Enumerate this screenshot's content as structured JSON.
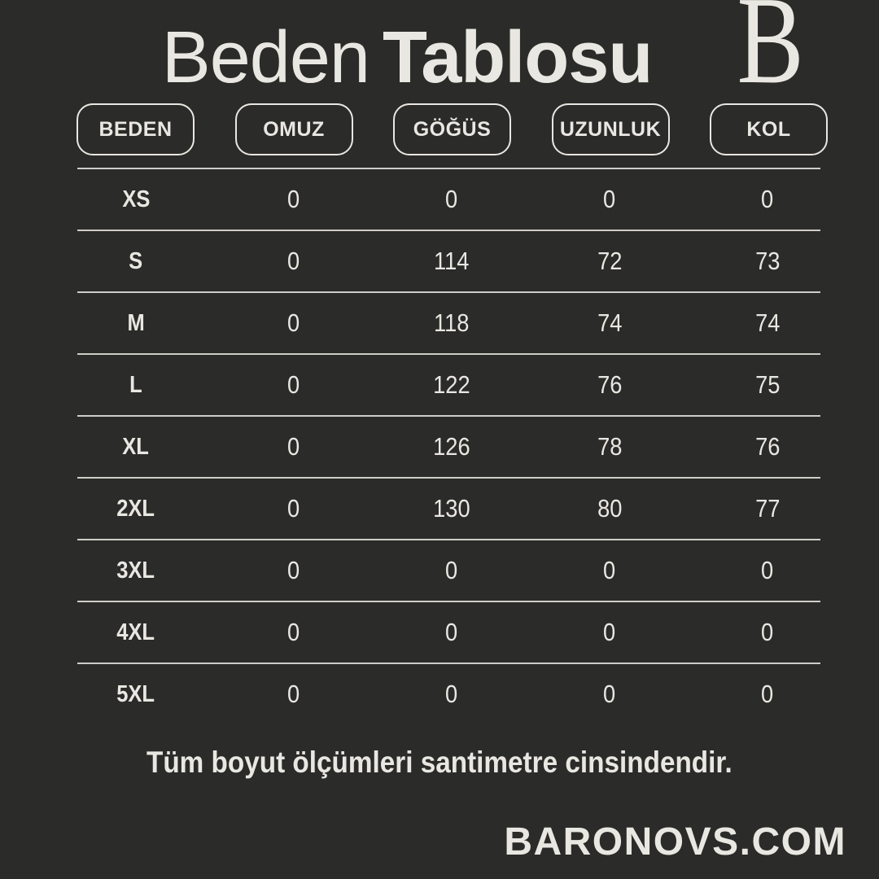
{
  "page": {
    "bg_color": "#2b2b29",
    "text_color": "#e9e7e1",
    "line_color": "#cfcdc7"
  },
  "header": {
    "title_regular": "Beden",
    "title_bold": "Tablosu",
    "logo_letter": "B"
  },
  "chart_data": {
    "type": "table",
    "title": "Beden Tablosu",
    "columns": [
      "BEDEN",
      "OMUZ",
      "GÖĞÜS",
      "UZUNLUK",
      "KOL"
    ],
    "rows": [
      {
        "size": "XS",
        "values": [
          "0",
          "0",
          "0",
          "0"
        ]
      },
      {
        "size": "S",
        "values": [
          "0",
          "114",
          "72",
          "73"
        ]
      },
      {
        "size": "M",
        "values": [
          "0",
          "118",
          "74",
          "74"
        ]
      },
      {
        "size": "L",
        "values": [
          "0",
          "122",
          "76",
          "75"
        ]
      },
      {
        "size": "XL",
        "values": [
          "0",
          "126",
          "78",
          "76"
        ]
      },
      {
        "size": "2XL",
        "values": [
          "0",
          "130",
          "80",
          "77"
        ]
      },
      {
        "size": "3XL",
        "values": [
          "0",
          "0",
          "0",
          "0"
        ]
      },
      {
        "size": "4XL",
        "values": [
          "0",
          "0",
          "0",
          "0"
        ]
      },
      {
        "size": "5XL",
        "values": [
          "0",
          "0",
          "0",
          "0"
        ]
      }
    ],
    "units_note": "Tüm boyut ölçümleri santimetre cinsindendir."
  },
  "footer": {
    "note": "Tüm boyut ölçümleri santimetre cinsindendir.",
    "website": "BARONOVS.COM"
  }
}
